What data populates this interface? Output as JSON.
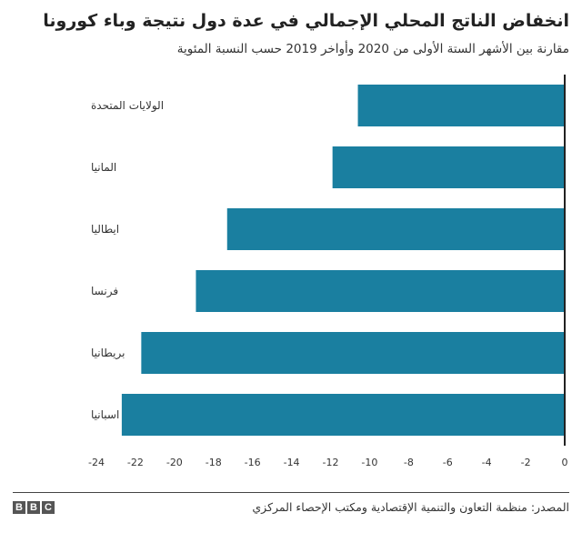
{
  "title": "انخفاض الناتج المحلي الإجمالي في عدة دول نتيجة وباء كورونا",
  "subtitle": "مقارنة بين الأشهر الستة الأولى من 2020 وأواخر 2019 حسب النسبة المئوية",
  "source": "المصدر: منظمة التعاون والتنمية الإقتصادية ومكتب الإحصاء المركزي",
  "logo": {
    "letters": [
      "B",
      "B",
      "C"
    ]
  },
  "colors": {
    "bar": "#1a7fa0",
    "axis": "#222222",
    "grid": "#cccccc",
    "text": "#333333"
  },
  "chart_data": {
    "type": "bar",
    "orientation": "horizontal",
    "categories": [
      "الولايات المتحدة",
      "المانيا",
      "ايطاليا",
      "فرنسا",
      "بريطانيا",
      "اسبانيا"
    ],
    "values": [
      -10.6,
      -11.9,
      -17.3,
      -18.9,
      -21.7,
      -22.7
    ],
    "xlim": [
      -24,
      0
    ],
    "xticks": [
      0,
      -2,
      -4,
      -6,
      -8,
      -10,
      -12,
      -14,
      -16,
      -18,
      -20,
      -22,
      -24
    ],
    "xtick_labels": [
      "0",
      "-2",
      "-4",
      "-6",
      "-8",
      "-10",
      "-12",
      "-14",
      "-16",
      "-18",
      "-20",
      "-22",
      "-24"
    ],
    "grid": false
  }
}
